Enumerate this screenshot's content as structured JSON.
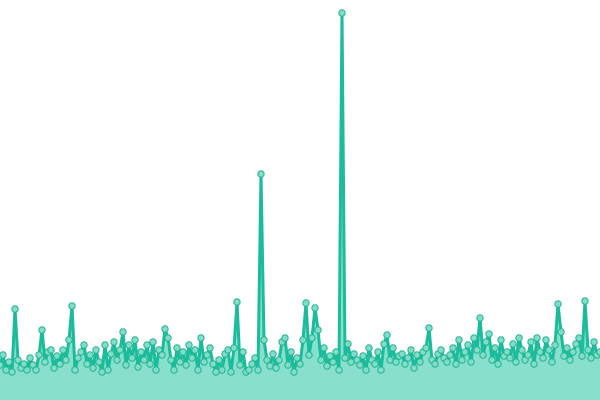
{
  "chart_data": {
    "type": "area",
    "title": "",
    "xlabel": "",
    "ylabel": "",
    "axes_visible": false,
    "grid": false,
    "legend": "none",
    "ylim": [
      0,
      400
    ],
    "colors": {
      "line": "#1abc9c",
      "fill": "#88e0cc",
      "marker_fill": "#82dcc8",
      "marker_stroke": "#1fb592"
    },
    "markers": true,
    "values": [
      35,
      45,
      30,
      38,
      28,
      91,
      40,
      32,
      36,
      30,
      42,
      35,
      30,
      45,
      70,
      38,
      48,
      50,
      32,
      44,
      36,
      50,
      40,
      60,
      94,
      30,
      42,
      48,
      55,
      36,
      45,
      32,
      50,
      38,
      28,
      55,
      30,
      46,
      58,
      40,
      50,
      68,
      35,
      55,
      42,
      60,
      33,
      48,
      40,
      55,
      36,
      58,
      30,
      50,
      45,
      71,
      62,
      40,
      30,
      52,
      38,
      48,
      35,
      55,
      42,
      50,
      30,
      62,
      38,
      45,
      52,
      36,
      28,
      40,
      30,
      46,
      50,
      28,
      52,
      98,
      35,
      48,
      28,
      30,
      36,
      42,
      30,
      226,
      60,
      40,
      34,
      46,
      32,
      40,
      58,
      62,
      35,
      48,
      28,
      42,
      36,
      60,
      97,
      45,
      62,
      92,
      70,
      40,
      52,
      34,
      44,
      38,
      48,
      30,
      387,
      42,
      56,
      38,
      46,
      40,
      35,
      44,
      30,
      52,
      40,
      36,
      48,
      30,
      56,
      65,
      40,
      52,
      38,
      44,
      46,
      36,
      42,
      50,
      32,
      45,
      38,
      48,
      52,
      72,
      40,
      36,
      46,
      50,
      42,
      38,
      45,
      52,
      36,
      60,
      40,
      48,
      55,
      38,
      62,
      50,
      82,
      45,
      58,
      66,
      40,
      52,
      36,
      60,
      44,
      48,
      42,
      56,
      38,
      62,
      50,
      40,
      45,
      58,
      36,
      62,
      48,
      42,
      60,
      50,
      38,
      55,
      96,
      68,
      44,
      52,
      40,
      48,
      56,
      62,
      44,
      99,
      50,
      42,
      58,
      45,
      48
    ]
  }
}
